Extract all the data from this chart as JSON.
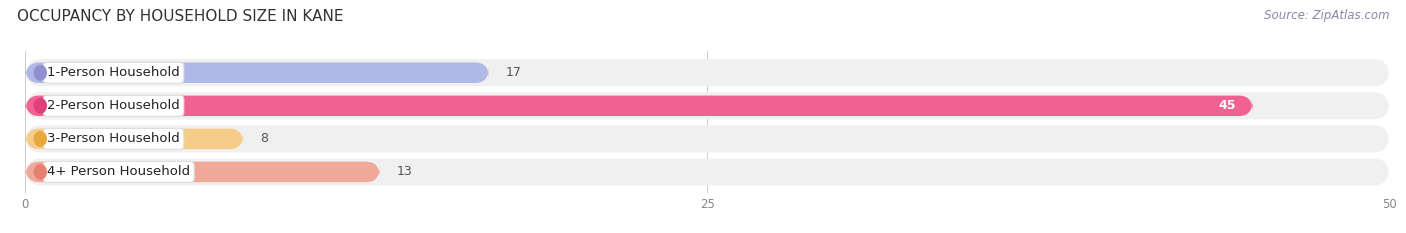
{
  "title": "OCCUPANCY BY HOUSEHOLD SIZE IN KANE",
  "source": "Source: ZipAtlas.com",
  "categories": [
    "1-Person Household",
    "2-Person Household",
    "3-Person Household",
    "4+ Person Household"
  ],
  "values": [
    17,
    45,
    8,
    13
  ],
  "bar_colors": [
    "#b0b8e8",
    "#f06292",
    "#f5cc88",
    "#f0a898"
  ],
  "label_dot_colors": [
    "#9090d0",
    "#e0407a",
    "#e8a840",
    "#e88070"
  ],
  "row_bg_color": "#f0f0f0",
  "background_color": "#ffffff",
  "xlim": [
    0,
    50
  ],
  "xticks": [
    0,
    25,
    50
  ],
  "title_fontsize": 11,
  "label_fontsize": 9.5,
  "value_fontsize": 9,
  "source_fontsize": 8.5,
  "value_color_inside": "#ffffff",
  "value_color_outside": "#555555"
}
